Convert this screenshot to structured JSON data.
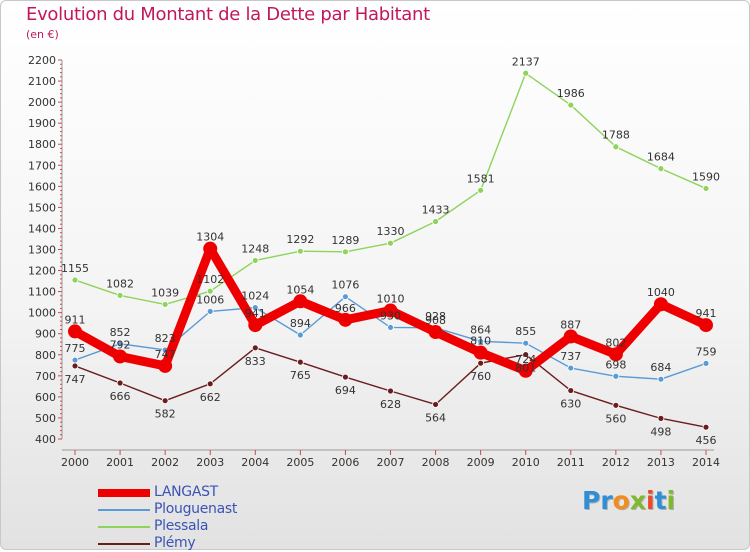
{
  "chart_data": {
    "type": "line",
    "title": "Evolution du Montant de la Dette par Habitant",
    "subtitle": "(en €)",
    "x": [
      "2000",
      "2001",
      "2002",
      "2003",
      "2004",
      "2005",
      "2006",
      "2007",
      "2008",
      "2009",
      "2010",
      "2011",
      "2012",
      "2013",
      "2014"
    ],
    "ylim": [
      400,
      2200
    ],
    "yticks": [
      400,
      500,
      600,
      700,
      800,
      900,
      1000,
      1100,
      1200,
      1300,
      1400,
      1500,
      1600,
      1700,
      1800,
      1900,
      2000,
      2100,
      2200
    ],
    "grid": false,
    "legend_position": "bottom-left",
    "series": [
      {
        "name": "Plessala",
        "color": "#8ed35a",
        "values": [
          1155,
          1082,
          1039,
          1102,
          1248,
          1292,
          1289,
          1330,
          1433,
          1581,
          2137,
          1986,
          1788,
          1684,
          1590
        ],
        "labels": [
          "1155",
          "1082",
          "1039",
          "1102",
          "1248",
          "1292",
          "1289",
          "1330",
          "1433",
          "1581",
          "2137",
          "1986",
          "1788",
          "1684",
          "1590"
        ]
      },
      {
        "name": "Plouguenast",
        "color": "#5b9bd5",
        "values": [
          775,
          852,
          823,
          1006,
          1024,
          894,
          1076,
          930,
          928,
          864,
          855,
          737,
          698,
          684,
          759
        ],
        "labels": [
          "775",
          "852",
          "823",
          "1006",
          "1024",
          "894",
          "1076",
          "930",
          "928",
          "864",
          "855",
          "737",
          "698",
          "684",
          "759"
        ]
      },
      {
        "name": "Plémy",
        "color": "#6b1d1d",
        "values": [
          747,
          666,
          582,
          662,
          833,
          765,
          694,
          628,
          564,
          760,
          801,
          630,
          560,
          498,
          456
        ],
        "labels": [
          "747",
          "666",
          "582",
          "662",
          "833",
          "765",
          "694",
          "628",
          "564",
          "760",
          "801",
          "630",
          "560",
          "498",
          "456"
        ]
      },
      {
        "name": "LANGAST",
        "color": "#ee0000",
        "values": [
          911,
          792,
          747,
          1304,
          941,
          1054,
          966,
          1010,
          908,
          810,
          724,
          887,
          802,
          1040,
          941
        ],
        "labels": [
          "911",
          "792",
          "747",
          "1304",
          "941",
          "1054",
          "966",
          "1010",
          "908",
          "810",
          "724",
          "887",
          "802",
          "1040",
          "941"
        ]
      }
    ]
  },
  "legend": {
    "items": [
      {
        "label": "LANGAST",
        "color": "#ee0000"
      },
      {
        "label": "Plouguenast",
        "color": "#5b9bd5"
      },
      {
        "label": "Plessala",
        "color": "#8ed35a"
      },
      {
        "label": "Plémy",
        "color": "#6b1d1d"
      }
    ]
  },
  "logo": {
    "p1": "Pr",
    "p2": "o",
    "p3": "x",
    "p4": "i",
    "p5": "t",
    "p6": "i"
  }
}
